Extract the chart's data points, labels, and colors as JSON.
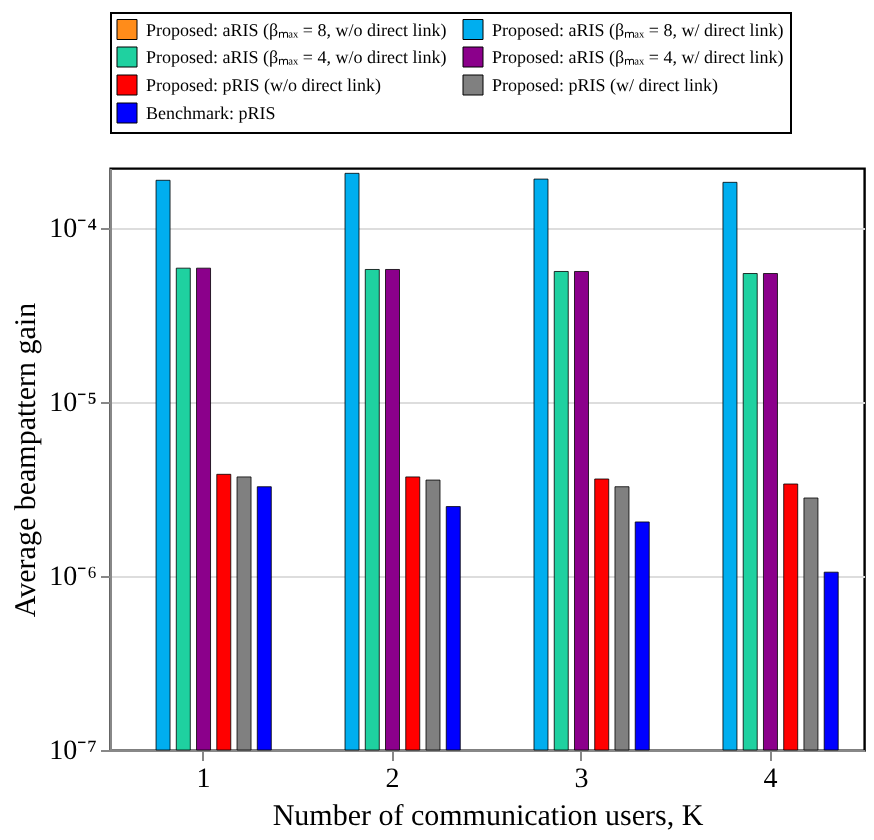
{
  "chart_data": {
    "type": "bar",
    "xlabel": "Number of communication users, K",
    "ylabel": "Average beampattern gain",
    "categories": [
      "1",
      "2",
      "3",
      "4"
    ],
    "log": true,
    "ylim": [
      1e-07,
      0.00022
    ],
    "yticks": [
      {
        "value": 1e-07,
        "label": "10⁻⁷"
      },
      {
        "value": 1e-06,
        "label": "10⁻⁶"
      },
      {
        "value": 1e-05,
        "label": "10⁻⁵"
      },
      {
        "value": 0.0001,
        "label": "10⁻⁴"
      }
    ],
    "grid": "y",
    "legend": "top",
    "series": [
      {
        "name": "Proposed: aRIS (βₘₐₓ = 8, w/o direct link)",
        "color": "#ff8c1a",
        "values": [
          null,
          null,
          null,
          null
        ]
      },
      {
        "name": "Proposed: aRIS (βₘₐₓ = 8, w/ direct link)",
        "color": "#00aeef",
        "values": [
          0.000187,
          0.000205,
          0.00019,
          0.000182
        ]
      },
      {
        "name": "Proposed: aRIS (βₘₐₓ = 4, w/o direct link)",
        "color": "#1fd1a0",
        "values": [
          5.85e-05,
          5.75e-05,
          5.6e-05,
          5.45e-05
        ]
      },
      {
        "name": "Proposed: aRIS (βₘₐₓ = 4, w/ direct link)",
        "color": "#8b008b",
        "values": [
          5.85e-05,
          5.75e-05,
          5.6e-05,
          5.45e-05
        ]
      },
      {
        "name": "Proposed: pRIS (w/o direct link)",
        "color": "#ff0000",
        "values": [
          3.83e-06,
          3.7e-06,
          3.6e-06,
          3.37e-06
        ]
      },
      {
        "name": "Proposed: pRIS (w/ direct link)",
        "color": "#808080",
        "values": [
          3.7e-06,
          3.55e-06,
          3.25e-06,
          2.8e-06
        ]
      },
      {
        "name": "Benchmark: pRIS",
        "color": "#0000ff",
        "values": [
          3.25e-06,
          2.5e-06,
          2.04e-06,
          1.05e-06
        ]
      }
    ]
  }
}
